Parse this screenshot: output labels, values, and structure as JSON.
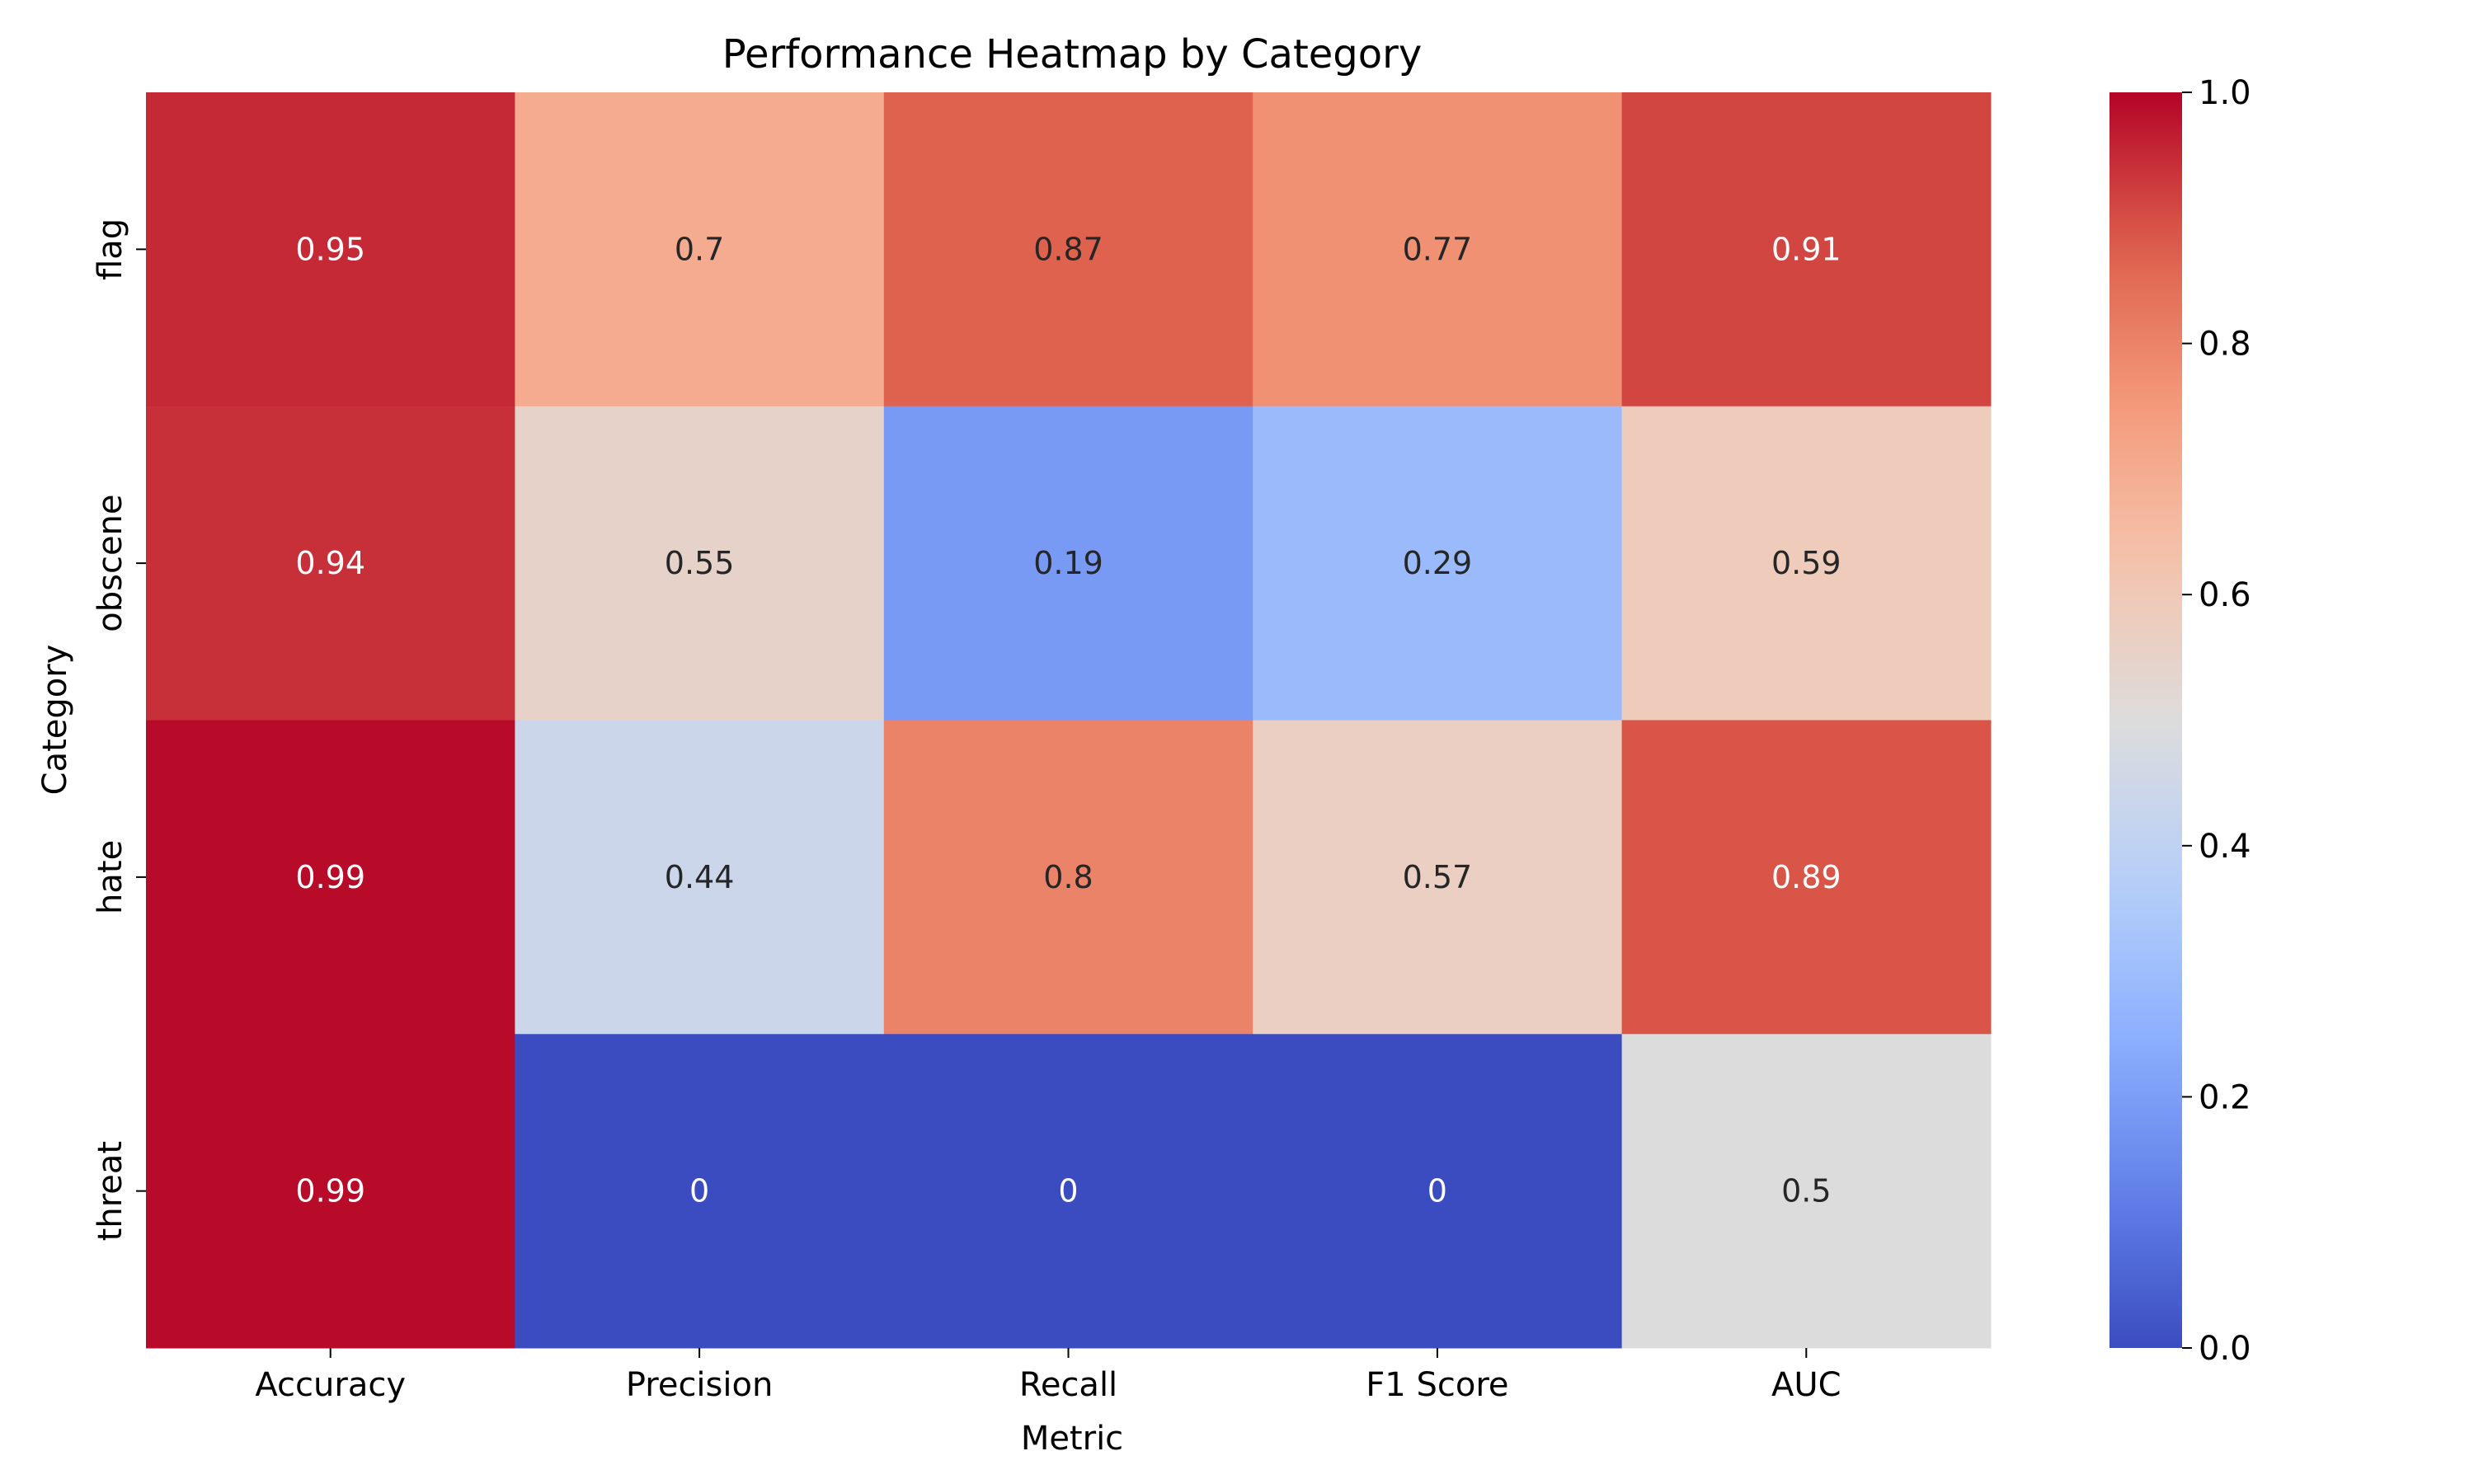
{
  "chart_data": {
    "type": "heatmap",
    "title": "Performance Heatmap by Category",
    "xlabel": "Metric",
    "ylabel": "Category",
    "x_categories": [
      "Accuracy",
      "Precision",
      "Recall",
      "F1 Score",
      "AUC"
    ],
    "y_categories": [
      "flag",
      "obscene",
      "hate",
      "threat"
    ],
    "values": [
      [
        0.95,
        0.7,
        0.87,
        0.77,
        0.91
      ],
      [
        0.94,
        0.55,
        0.19,
        0.29,
        0.59
      ],
      [
        0.99,
        0.44,
        0.8,
        0.57,
        0.89
      ],
      [
        0.99,
        0.0,
        0.0,
        0.0,
        0.5
      ]
    ],
    "cell_labels": [
      [
        "0.95",
        "0.7",
        "0.87",
        "0.77",
        "0.91"
      ],
      [
        "0.94",
        "0.55",
        "0.19",
        "0.29",
        "0.59"
      ],
      [
        "0.99",
        "0.44",
        "0.8",
        "0.57",
        "0.89"
      ],
      [
        "0.99",
        "0",
        "0",
        "0",
        "0.5"
      ]
    ],
    "colormap": "coolwarm",
    "color_min": 0.0,
    "color_max": 1.0,
    "colorbar_ticks": [
      "0.0",
      "0.2",
      "0.4",
      "0.6",
      "0.8",
      "1.0"
    ],
    "colors": {
      "low": "#3b4cc0",
      "mid": "#dddcdc",
      "high": "#b40426"
    }
  }
}
